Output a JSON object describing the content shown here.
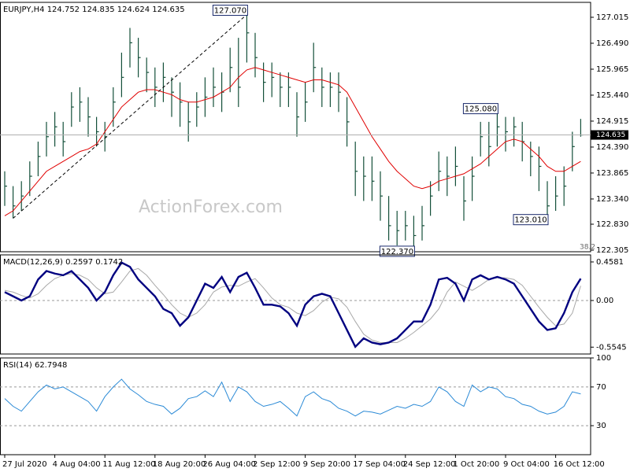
{
  "chart_data": [
    {
      "type": "ohlc",
      "title": "EURJPY,H4  124.752 124.835 124.624 124.635",
      "color": "#14503a",
      "high": [
        123.9,
        123.6,
        123.7,
        124.1,
        124.5,
        124.9,
        125.1,
        124.9,
        125.5,
        125.6,
        125.4,
        125.0,
        124.9,
        125.6,
        126.3,
        126.8,
        126.6,
        126.2,
        126.0,
        126.1,
        125.8,
        125.7,
        125.3,
        125.5,
        125.8,
        126.0,
        125.9,
        126.4,
        126.6,
        127.07,
        126.7,
        126.1,
        126.1,
        125.9,
        125.9,
        125.5,
        125.7,
        126.5,
        126.0,
        125.9,
        125.9,
        125.4,
        124.5,
        124.2,
        124.2,
        123.9,
        123.4,
        123.1,
        123.1,
        123.0,
        123.2,
        123.7,
        124.3,
        124.2,
        124.4,
        123.8,
        124.2,
        124.9,
        124.9,
        125.08,
        125.0,
        125.0,
        124.9,
        124.5,
        124.4,
        123.7,
        123.8,
        124.0,
        124.7,
        124.96
      ],
      "low": [
        123.2,
        122.95,
        123.1,
        123.4,
        123.8,
        124.2,
        124.4,
        124.2,
        124.8,
        124.9,
        124.6,
        124.4,
        124.3,
        124.8,
        125.4,
        126.0,
        125.8,
        125.5,
        125.2,
        125.3,
        125.0,
        124.8,
        124.5,
        124.8,
        125.0,
        125.2,
        125.1,
        125.5,
        125.2,
        126.1,
        125.8,
        125.3,
        125.4,
        125.2,
        125.2,
        124.6,
        124.9,
        125.5,
        125.2,
        125.2,
        125.1,
        124.4,
        123.4,
        123.3,
        123.3,
        122.9,
        122.5,
        122.4,
        122.5,
        122.37,
        122.5,
        123.0,
        123.5,
        123.4,
        123.6,
        122.9,
        123.3,
        124.2,
        124.0,
        124.4,
        124.3,
        124.4,
        124.1,
        123.8,
        123.5,
        123.01,
        123.1,
        123.2,
        123.9,
        124.6
      ],
      "close": [
        123.6,
        123.2,
        123.4,
        123.8,
        124.2,
        124.6,
        124.8,
        124.5,
        125.2,
        125.3,
        125.0,
        124.7,
        124.6,
        125.3,
        125.8,
        126.5,
        126.2,
        125.9,
        125.6,
        125.8,
        125.5,
        125.3,
        124.9,
        125.2,
        125.4,
        125.6,
        125.5,
        126.0,
        125.6,
        126.7,
        126.2,
        125.7,
        125.8,
        125.6,
        125.6,
        125.0,
        125.3,
        126.0,
        125.6,
        125.6,
        125.5,
        124.9,
        123.9,
        123.8,
        123.7,
        123.4,
        122.8,
        122.7,
        122.8,
        122.6,
        122.8,
        123.4,
        123.9,
        123.8,
        124.0,
        123.3,
        123.8,
        124.6,
        124.4,
        124.8,
        124.7,
        124.8,
        124.5,
        124.2,
        124.0,
        123.2,
        123.4,
        123.6,
        124.4,
        124.635
      ],
      "ma": {
        "color": "#e00000",
        "values": [
          123.0,
          123.1,
          123.3,
          123.5,
          123.7,
          123.9,
          124.0,
          124.1,
          124.2,
          124.3,
          124.35,
          124.45,
          124.7,
          124.95,
          125.2,
          125.35,
          125.5,
          125.55,
          125.55,
          125.5,
          125.45,
          125.35,
          125.3,
          125.3,
          125.35,
          125.4,
          125.5,
          125.6,
          125.8,
          125.95,
          126.0,
          125.95,
          125.9,
          125.85,
          125.8,
          125.75,
          125.7,
          125.75,
          125.75,
          125.7,
          125.65,
          125.5,
          125.2,
          124.9,
          124.6,
          124.35,
          124.1,
          123.9,
          123.75,
          123.6,
          123.55,
          123.6,
          123.7,
          123.75,
          123.8,
          123.85,
          123.95,
          124.05,
          124.2,
          124.35,
          124.5,
          124.55,
          124.5,
          124.35,
          124.2,
          124.0,
          123.9,
          123.9,
          124.0,
          124.1
        ]
      },
      "annotations": [
        {
          "value": 127.07,
          "label": "127.070"
        },
        {
          "value": 125.08,
          "label": "125.080"
        },
        {
          "value": 123.01,
          "label": "123.010"
        },
        {
          "value": 122.37,
          "label": "122.370"
        }
      ],
      "note": "38.2",
      "watermark": "ActionForex.com",
      "ylim": [
        122.273,
        127.317
      ],
      "yticks": [
        127.015,
        {
          "value": 126.49,
          "label": "126.490"
        },
        125.965,
        {
          "value": 125.44,
          "label": "125.440"
        },
        124.915,
        {
          "value": 124.39,
          "label": "124.390"
        },
        123.865,
        {
          "value": 123.34,
          "label": "123.340"
        },
        {
          "value": 122.83,
          "label": "122.830"
        },
        122.305
      ]
    },
    {
      "type": "macd",
      "title": "MACD(12,26,9) 0.2597 0.1742",
      "macd": {
        "color": "#000080",
        "values": [
          0.1,
          0.05,
          0.0,
          0.05,
          0.25,
          0.35,
          0.32,
          0.3,
          0.35,
          0.25,
          0.15,
          0.0,
          0.1,
          0.3,
          0.45,
          0.4,
          0.25,
          0.15,
          0.05,
          -0.1,
          -0.15,
          -0.3,
          -0.2,
          0.0,
          0.2,
          0.15,
          0.28,
          0.1,
          0.28,
          0.33,
          0.15,
          -0.05,
          -0.05,
          -0.07,
          -0.15,
          -0.3,
          -0.05,
          0.05,
          0.08,
          0.05,
          -0.15,
          -0.35,
          -0.55,
          -0.45,
          -0.5,
          -0.52,
          -0.5,
          -0.45,
          -0.35,
          -0.25,
          -0.25,
          -0.05,
          0.25,
          0.27,
          0.2,
          0.0,
          0.25,
          0.3,
          0.25,
          0.28,
          0.25,
          0.2,
          0.05,
          -0.1,
          -0.25,
          -0.35,
          -0.33,
          -0.15,
          0.1,
          0.2597
        ]
      },
      "signal": {
        "color": "#a8a8a8",
        "values": [
          0.12,
          0.1,
          0.06,
          0.03,
          0.08,
          0.18,
          0.26,
          0.3,
          0.32,
          0.3,
          0.25,
          0.15,
          0.08,
          0.1,
          0.22,
          0.35,
          0.38,
          0.3,
          0.18,
          0.07,
          -0.05,
          -0.15,
          -0.2,
          -0.15,
          -0.05,
          0.1,
          0.16,
          0.18,
          0.17,
          0.22,
          0.26,
          0.15,
          0.03,
          -0.05,
          -0.08,
          -0.15,
          -0.18,
          -0.12,
          -0.02,
          0.04,
          0.02,
          -0.08,
          -0.25,
          -0.4,
          -0.47,
          -0.5,
          -0.5,
          -0.5,
          -0.45,
          -0.38,
          -0.3,
          -0.22,
          -0.1,
          0.1,
          0.22,
          0.17,
          0.12,
          0.18,
          0.25,
          0.27,
          0.27,
          0.25,
          0.18,
          0.05,
          -0.08,
          -0.2,
          -0.3,
          -0.28,
          -0.15,
          0.1742
        ]
      },
      "ylim": [
        -0.636,
        0.542
      ],
      "yticks": [
        0.4581,
        {
          "value": 0,
          "label": "0.00"
        },
        -0.5545
      ]
    },
    {
      "type": "line",
      "title": "RSI(14) 62.7948",
      "color": "#2b8ad6",
      "values": [
        58,
        50,
        45,
        55,
        65,
        72,
        68,
        70,
        65,
        60,
        55,
        45,
        60,
        70,
        78,
        68,
        62,
        55,
        52,
        50,
        42,
        48,
        58,
        60,
        66,
        60,
        75,
        55,
        70,
        65,
        55,
        50,
        52,
        55,
        48,
        40,
        60,
        65,
        58,
        55,
        48,
        45,
        40,
        45,
        44,
        42,
        46,
        50,
        48,
        52,
        50,
        55,
        70,
        65,
        55,
        50,
        72,
        65,
        70,
        68,
        60,
        58,
        52,
        50,
        45,
        42,
        44,
        50,
        65,
        62.7948
      ],
      "levels": [
        30,
        70
      ],
      "categories": [
        "27 Jul 2020",
        null,
        null,
        null,
        null,
        null,
        "4 Aug 04:00",
        null,
        null,
        null,
        null,
        null,
        "11 Aug 12:00",
        null,
        null,
        null,
        null,
        null,
        "18 Aug 20:00",
        null,
        null,
        null,
        null,
        null,
        "26 Aug 04:00",
        null,
        null,
        null,
        null,
        null,
        "2 Sep 12:00",
        null,
        null,
        null,
        null,
        null,
        "9 Sep 20:00",
        null,
        null,
        null,
        null,
        null,
        "17 Sep 04:00",
        null,
        null,
        null,
        null,
        null,
        "24 Sep 12:00",
        null,
        null,
        null,
        null,
        null,
        "1 Oct 20:00",
        null,
        null,
        null,
        null,
        null,
        "9 Oct 04:00",
        null,
        null,
        null,
        null,
        null,
        "16 Oct 12:00",
        null,
        null,
        null
      ],
      "ylim": [
        0,
        100
      ],
      "yticks": [
        30,
        70,
        100
      ]
    }
  ]
}
